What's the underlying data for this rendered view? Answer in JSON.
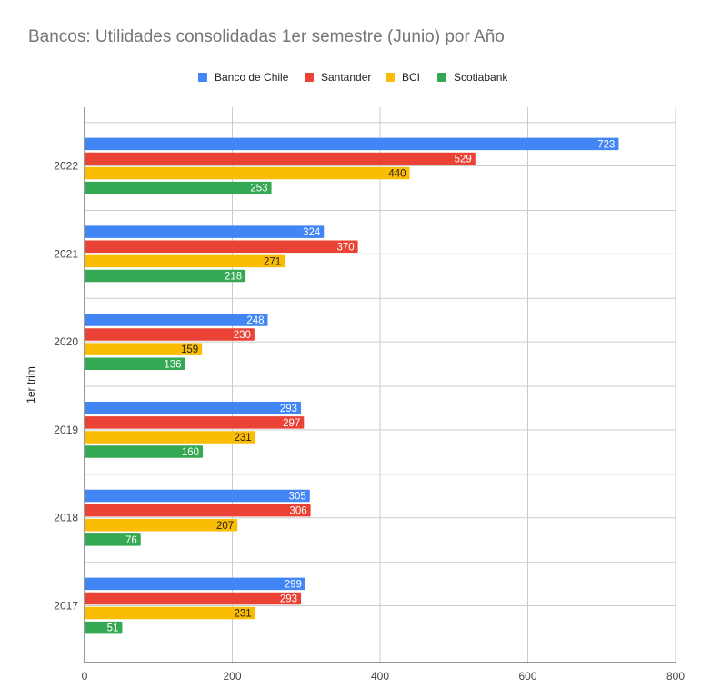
{
  "colors": {
    "banco_de_chile": "#4285f4",
    "santander": "#ea4335",
    "bci": "#fbbc04",
    "scotiabank": "#34a853",
    "gridline": "#cccccc",
    "axis": "#333333",
    "title": "#757575"
  },
  "legend": {
    "items": [
      {
        "label": "Banco de Chile"
      },
      {
        "label": "Santander"
      },
      {
        "label": "BCI"
      },
      {
        "label": "Scotiabank"
      }
    ]
  },
  "chart_data": {
    "type": "bar",
    "orientation": "horizontal",
    "title": "Bancos: Utilidades consolidadas 1er semestre (Junio) por Año",
    "xlabel": "",
    "ylabel": "1er trim",
    "xlim": [
      0,
      800
    ],
    "x_ticks": [
      "0",
      "200",
      "400",
      "600",
      "800"
    ],
    "grid": true,
    "legend_position": "top",
    "categories": [
      "2022",
      "2021",
      "2020",
      "2019",
      "2018",
      "2017"
    ],
    "series": [
      {
        "name": "Banco de Chile",
        "values": [
          723,
          324,
          248,
          293,
          305,
          299
        ]
      },
      {
        "name": "Santander",
        "values": [
          529,
          370,
          230,
          297,
          306,
          293
        ]
      },
      {
        "name": "BCI",
        "values": [
          440,
          271,
          159,
          231,
          207,
          231
        ]
      },
      {
        "name": "Scotiabank",
        "values": [
          253,
          218,
          136,
          160,
          76,
          51
        ]
      }
    ]
  }
}
